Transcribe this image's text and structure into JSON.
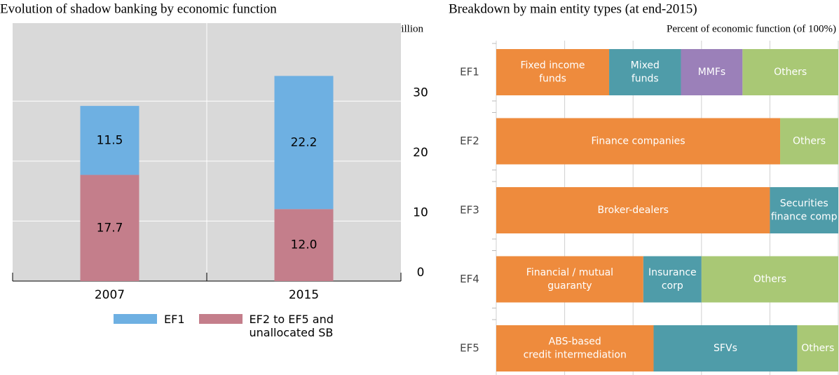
{
  "chart_data": [
    {
      "type": "bar",
      "stacked": true,
      "title": "Evolution of shadow banking by economic function",
      "y_label": "USD trillion",
      "categories": [
        "2007",
        "2015"
      ],
      "series": [
        {
          "name": "EF2 to EF5 and unallocated SB",
          "color": "#c47e8b",
          "values": [
            17.7,
            12.0
          ],
          "value_labels": [
            "17.7",
            "12.0"
          ]
        },
        {
          "name": "EF1",
          "color": "#6eb0e2",
          "values": [
            11.5,
            22.2
          ]
        }
      ],
      "ylim": [
        0,
        43
      ],
      "yticks": [
        0,
        10,
        20,
        30
      ],
      "grid": true,
      "legend": "bottom"
    },
    {
      "type": "hbar100",
      "title": "Breakdown by main entity types (at end-2015)",
      "x_label": "Percent of economic function (of 100%)",
      "xlim": [
        0,
        100
      ],
      "xticks": [
        0,
        20,
        40,
        60,
        80,
        100
      ],
      "grid": true,
      "rows": [
        {
          "category": "EF1",
          "segments": [
            {
              "label": [
                "Fixed income",
                "funds"
              ],
              "value": 33,
              "color": "#ee8b3d"
            },
            {
              "label": [
                "Mixed",
                "funds"
              ],
              "value": 21,
              "color": "#4f9ca9"
            },
            {
              "label": [
                "MMFs"
              ],
              "value": 18,
              "color": "#9b80b9"
            },
            {
              "label": [
                "Others"
              ],
              "value": 28,
              "color": "#a9c875"
            }
          ]
        },
        {
          "category": "EF2",
          "segments": [
            {
              "label": [
                "Finance companies"
              ],
              "value": 83,
              "color": "#ee8b3d"
            },
            {
              "label": [
                "Others"
              ],
              "value": 17,
              "color": "#a9c875"
            }
          ]
        },
        {
          "category": "EF3",
          "segments": [
            {
              "label": [
                "Broker-dealers"
              ],
              "value": 80,
              "color": "#ee8b3d"
            },
            {
              "label": [
                "Securities",
                "finance comp"
              ],
              "value": 20,
              "color": "#4f9ca9"
            }
          ]
        },
        {
          "category": "EF4",
          "segments": [
            {
              "label": [
                "Financial / mutual",
                "guaranty"
              ],
              "value": 43,
              "color": "#ee8b3d"
            },
            {
              "label": [
                "Insurance",
                "corp"
              ],
              "value": 17,
              "color": "#4f9ca9"
            },
            {
              "label": [
                "Others"
              ],
              "value": 40,
              "color": "#a9c875"
            }
          ]
        },
        {
          "category": "EF5",
          "segments": [
            {
              "label": [
                "ABS-based",
                "credit intermediation"
              ],
              "value": 46,
              "color": "#ee8b3d"
            },
            {
              "label": [
                "SFVs"
              ],
              "value": 42,
              "color": "#4f9ca9"
            },
            {
              "label": [
                "Others"
              ],
              "value": 12,
              "color": "#a9c875"
            }
          ]
        }
      ]
    }
  ]
}
